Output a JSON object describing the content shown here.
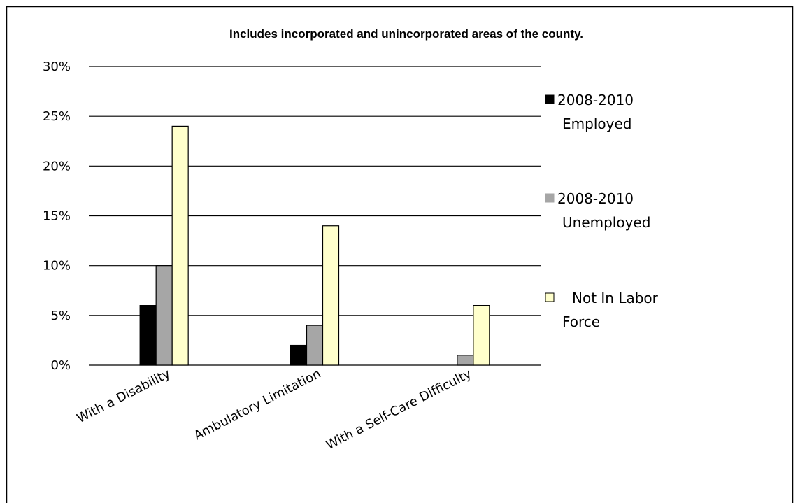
{
  "chart_data": {
    "type": "bar",
    "title": "Includes incorporated and unincorporated areas of the county.",
    "xlabel": "",
    "ylabel": "",
    "ylim": [
      0,
      30
    ],
    "yticks": [
      "0%",
      "5%",
      "10%",
      "15%",
      "20%",
      "25%",
      "30%"
    ],
    "ytick_values": [
      0,
      5,
      10,
      15,
      20,
      25,
      30
    ],
    "grid": true,
    "legend_position": "right",
    "categories": [
      "With a Disability",
      "Ambulatory Limitation",
      "With a Self-Care Difficulty"
    ],
    "series": [
      {
        "name": "2008-2010 Employed",
        "legend_lines": [
          "2008-2010",
          "Employed"
        ],
        "color": "#000000",
        "values": [
          6,
          2,
          0
        ]
      },
      {
        "name": "2008-2010 Unemployed",
        "legend_lines": [
          "2008-2010",
          "Unemployed"
        ],
        "color": "#a6a6a6",
        "values": [
          10,
          4,
          1
        ]
      },
      {
        "name": "Not In Labor Force",
        "legend_lines": [
          "Not In Labor",
          "Force"
        ],
        "color": "#ffffcc",
        "values": [
          24,
          14,
          6
        ]
      }
    ]
  }
}
